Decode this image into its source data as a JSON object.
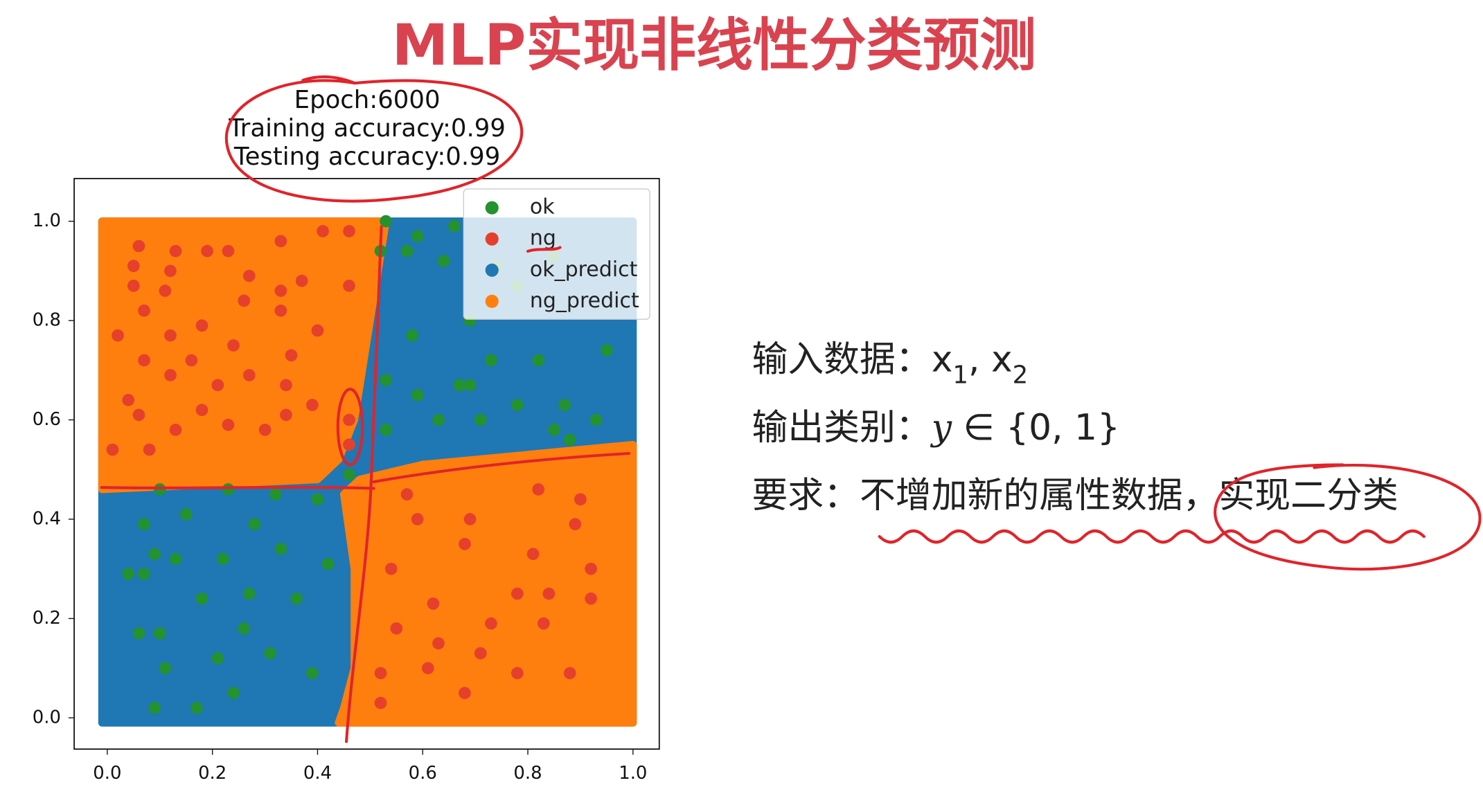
{
  "slide": {
    "title": "MLP实现非线性分类预测",
    "lines": [
      {
        "parts": [
          {
            "t": "输入数据：x"
          },
          {
            "t": "1",
            "sub": true
          },
          {
            "t": ", x"
          },
          {
            "t": "2",
            "sub": true
          }
        ]
      },
      {
        "parts": [
          {
            "t": "输出类别："
          },
          {
            "t": "y",
            "italic": true
          },
          {
            "t": " ∈ {0,  1}"
          }
        ]
      },
      {
        "parts": [
          {
            "t": "要求：不增加新的属性数据，实现二分类"
          }
        ]
      }
    ]
  },
  "chart_data": {
    "type": "scatter",
    "title": [
      "Epoch:6000",
      "Training accuracy:0.99",
      "Testing accuracy:0.99"
    ],
    "xlim": [
      -0.063,
      1.05
    ],
    "ylim": [
      -0.063,
      1.086
    ],
    "xticks": [
      {
        "value": 0,
        "label": "0.0"
      },
      0.2,
      0.4,
      0.6,
      0.8,
      {
        "value": 1,
        "label": "1.0"
      }
    ],
    "yticks": [
      {
        "value": 0,
        "label": "0.0"
      },
      0.2,
      0.4,
      0.6,
      0.8,
      {
        "value": 1,
        "label": "1.0"
      }
    ],
    "legend": "upper right",
    "series": [
      {
        "name": "ok",
        "color": "#24922f",
        "x": [
          0.53,
          0.59,
          0.66,
          0.52,
          0.57,
          0.64,
          0.74,
          0.85,
          0.69,
          0.78,
          0.58,
          0.73,
          0.95,
          0.53,
          0.67,
          0.82,
          0.59,
          0.69,
          0.78,
          0.87,
          0.63,
          0.71,
          0.93,
          0.53,
          0.85,
          0.88,
          0.1,
          0.07,
          0.15,
          0.23,
          0.32,
          0.4,
          0.28,
          0.09,
          0.22,
          0.33,
          0.42,
          0.04,
          0.07,
          0.13,
          0.18,
          0.27,
          0.36,
          0.06,
          0.1,
          0.26,
          0.21,
          0.11,
          0.31,
          0.39,
          0.24,
          0.17,
          0.09,
          0.46
        ],
        "y": [
          1.0,
          0.97,
          0.99,
          0.94,
          0.94,
          0.92,
          0.91,
          0.93,
          0.8,
          0.87,
          0.77,
          0.72,
          0.74,
          0.68,
          0.67,
          0.72,
          0.65,
          0.67,
          0.63,
          0.63,
          0.6,
          0.6,
          0.6,
          0.58,
          0.58,
          0.56,
          0.46,
          0.39,
          0.41,
          0.46,
          0.45,
          0.44,
          0.39,
          0.33,
          0.32,
          0.34,
          0.31,
          0.29,
          0.29,
          0.32,
          0.24,
          0.25,
          0.24,
          0.17,
          0.17,
          0.18,
          0.12,
          0.1,
          0.13,
          0.09,
          0.05,
          0.02,
          0.02,
          0.49
        ]
      },
      {
        "name": "ng",
        "color": "#e5402c",
        "x": [
          0.06,
          0.05,
          0.13,
          0.19,
          0.23,
          0.33,
          0.41,
          0.46,
          0.12,
          0.27,
          0.37,
          0.05,
          0.11,
          0.33,
          0.46,
          0.07,
          0.26,
          0.02,
          0.12,
          0.18,
          0.33,
          0.4,
          0.07,
          0.16,
          0.24,
          0.35,
          0.12,
          0.21,
          0.27,
          0.34,
          0.04,
          0.18,
          0.39,
          0.06,
          0.23,
          0.34,
          0.01,
          0.08,
          0.13,
          0.3,
          0.46,
          0.46,
          0.57,
          0.82,
          0.9,
          0.59,
          0.69,
          0.89,
          0.54,
          0.68,
          0.81,
          0.92,
          0.78,
          0.84,
          0.62,
          0.83,
          0.55,
          0.73,
          0.63,
          0.71,
          0.52,
          0.61,
          0.68,
          0.88,
          0.52,
          0.92,
          0.78
        ],
        "y": [
          0.95,
          0.91,
          0.94,
          0.94,
          0.94,
          0.96,
          0.98,
          0.98,
          0.9,
          0.89,
          0.88,
          0.87,
          0.86,
          0.86,
          0.87,
          0.82,
          0.84,
          0.77,
          0.77,
          0.79,
          0.82,
          0.78,
          0.72,
          0.72,
          0.75,
          0.73,
          0.69,
          0.67,
          0.69,
          0.67,
          0.64,
          0.62,
          0.63,
          0.61,
          0.59,
          0.61,
          0.54,
          0.54,
          0.58,
          0.58,
          0.6,
          0.55,
          0.45,
          0.46,
          0.44,
          0.4,
          0.4,
          0.39,
          0.3,
          0.35,
          0.33,
          0.3,
          0.25,
          0.25,
          0.23,
          0.19,
          0.18,
          0.19,
          0.15,
          0.13,
          0.09,
          0.1,
          0.05,
          0.09,
          0.03,
          0.24,
          0.09
        ]
      },
      {
        "name": "ok_predict",
        "color": "#1f77b4",
        "polygons": [
          {
            "x": [
              -0.01,
              1.0,
              1.0,
              -0.01
            ],
            "y": [
              -0.01,
              -0.01,
              1.0,
              1.0
            ]
          }
        ]
      },
      {
        "name": "ng_predict",
        "color": "#ff7f0e",
        "polygons": [
          {
            "x": [
              -0.01,
              0.53,
              0.5,
              0.47,
              0.44,
              0.4,
              -0.01
            ],
            "y": [
              1.0,
              1.0,
              0.8,
              0.6,
              0.52,
              0.48,
              0.46
            ]
          },
          {
            "x": [
              0.44,
              1.0,
              1.0,
              0.8,
              0.6,
              0.48,
              0.45,
              0.47,
              0.47,
              0.45
            ],
            "y": [
              -0.01,
              -0.01,
              0.55,
              0.53,
              0.51,
              0.48,
              0.45,
              0.3,
              0.1,
              0.02
            ]
          }
        ]
      }
    ]
  }
}
